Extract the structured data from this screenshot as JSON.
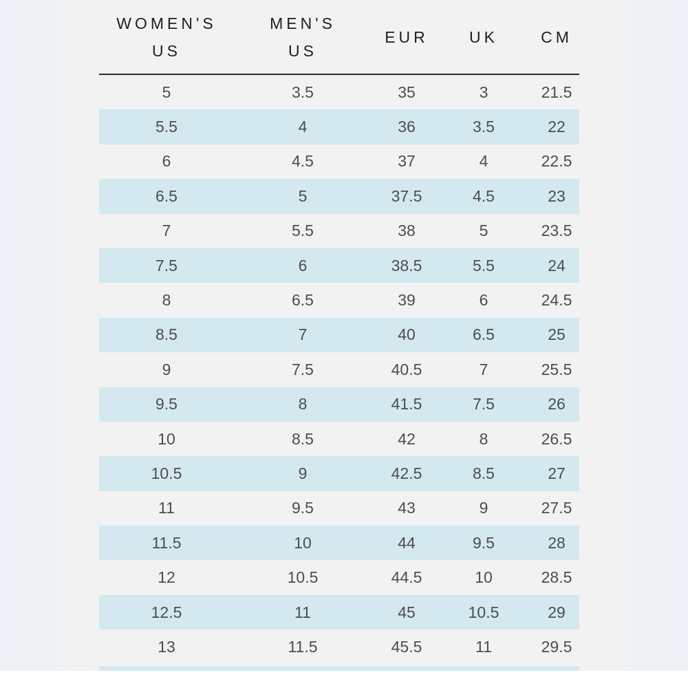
{
  "size_chart": {
    "headers": [
      "WOMEN'S\nUS",
      "MEN'S\nUS",
      "EUR",
      "UK",
      "CM"
    ],
    "rows": [
      [
        "5",
        "3.5",
        "35",
        "3",
        "21.5"
      ],
      [
        "5.5",
        "4",
        "36",
        "3.5",
        "22"
      ],
      [
        "6",
        "4.5",
        "37",
        "4",
        "22.5"
      ],
      [
        "6.5",
        "5",
        "37.5",
        "4.5",
        "23"
      ],
      [
        "7",
        "5.5",
        "38",
        "5",
        "23.5"
      ],
      [
        "7.5",
        "6",
        "38.5",
        "5.5",
        "24"
      ],
      [
        "8",
        "6.5",
        "39",
        "6",
        "24.5"
      ],
      [
        "8.5",
        "7",
        "40",
        "6.5",
        "25"
      ],
      [
        "9",
        "7.5",
        "40.5",
        "7",
        "25.5"
      ],
      [
        "9.5",
        "8",
        "41.5",
        "7.5",
        "26"
      ],
      [
        "10",
        "8.5",
        "42",
        "8",
        "26.5"
      ],
      [
        "10.5",
        "9",
        "42.5",
        "8.5",
        "27"
      ],
      [
        "11",
        "9.5",
        "43",
        "9",
        "27.5"
      ],
      [
        "11.5",
        "10",
        "44",
        "9.5",
        "28"
      ],
      [
        "12",
        "10.5",
        "44.5",
        "10",
        "28.5"
      ],
      [
        "12.5",
        "11",
        "45",
        "10.5",
        "29"
      ],
      [
        "13",
        "11.5",
        "45.5",
        "11",
        "29.5"
      ]
    ]
  },
  "colors": {
    "shaded_row": "#d3e9ef",
    "card_background": "#f3f2f3",
    "header_rule": "#2b2b2b",
    "header_text": "#1f1f1f",
    "cell_text": "#4d4d4d"
  }
}
